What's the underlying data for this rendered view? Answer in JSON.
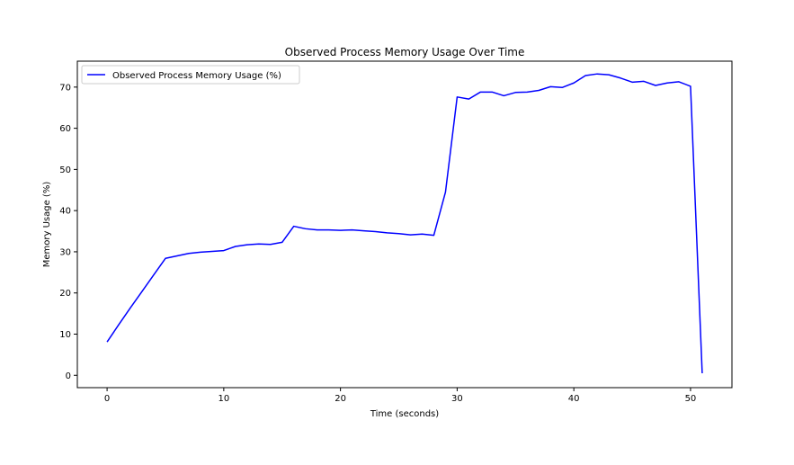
{
  "chart_data": {
    "type": "line",
    "title": "Observed Process Memory Usage Over Time",
    "xlabel": "Time (seconds)",
    "ylabel": "Memory Usage (%)",
    "xlim": [
      -2.55,
      53.55
    ],
    "ylim": [
      -3.0,
      76.3
    ],
    "xticks": [
      0,
      10,
      20,
      30,
      40,
      50
    ],
    "yticks": [
      0,
      10,
      20,
      30,
      40,
      50,
      60,
      70
    ],
    "grid": false,
    "legend_position": "top-left",
    "colors": {
      "line": "#0000ff",
      "frame": "#000000",
      "legend_border": "#cccccc"
    },
    "series": [
      {
        "name": "Observed Process Memory Usage (%)",
        "x": [
          0,
          1,
          2,
          3,
          4,
          5,
          6,
          7,
          8,
          9,
          10,
          11,
          12,
          13,
          14,
          15,
          16,
          17,
          18,
          19,
          20,
          21,
          22,
          23,
          24,
          25,
          26,
          27,
          28,
          29,
          30,
          31,
          32,
          33,
          34,
          35,
          36,
          37,
          38,
          39,
          40,
          41,
          42,
          43,
          44,
          45,
          46,
          47,
          48,
          49,
          50,
          51
        ],
        "values": [
          8.1,
          12.3,
          16.4,
          20.4,
          24.4,
          28.4,
          29.0,
          29.6,
          29.9,
          30.1,
          30.3,
          31.3,
          31.7,
          31.9,
          31.8,
          32.3,
          36.2,
          35.6,
          35.3,
          35.3,
          35.2,
          35.3,
          35.1,
          34.9,
          34.6,
          34.4,
          34.1,
          34.3,
          34.0,
          44.5,
          67.6,
          67.1,
          68.8,
          68.8,
          67.9,
          68.7,
          68.8,
          69.2,
          70.1,
          69.9,
          71.0,
          72.8,
          73.2,
          73.0,
          72.2,
          71.2,
          71.4,
          70.4,
          71.0,
          71.3,
          70.2,
          0.5
        ]
      }
    ]
  }
}
